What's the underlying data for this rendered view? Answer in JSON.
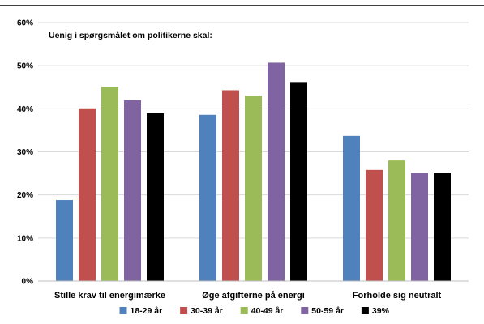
{
  "chart_data": {
    "type": "bar",
    "title": "",
    "annotation": "Uenig i spørgsmålet om politikerne skal:",
    "categories": [
      "Stille krav til energimærke",
      "Øge afgifterne på energi",
      "Forholde sig neutralt"
    ],
    "series": [
      {
        "name": "18-29 år",
        "color": "#4f81bd",
        "values": [
          18.8,
          38.6,
          33.7
        ]
      },
      {
        "name": "30-39 år",
        "color": "#c0504d",
        "values": [
          40.1,
          44.3,
          25.8
        ]
      },
      {
        "name": "40-49 år",
        "color": "#9bbb59",
        "values": [
          45.1,
          43.0,
          28.0
        ]
      },
      {
        "name": "50-59 år",
        "color": "#8064a2",
        "values": [
          42.0,
          50.7,
          25.1
        ]
      },
      {
        "name": "39%",
        "color": "#000000",
        "values": [
          39.0,
          46.2,
          25.2
        ]
      }
    ],
    "ylim": [
      0,
      60
    ],
    "yticks": [
      "0%",
      "10%",
      "20%",
      "30%",
      "40%",
      "50%",
      "60%"
    ],
    "grid": true,
    "legend_position": "bottom"
  }
}
